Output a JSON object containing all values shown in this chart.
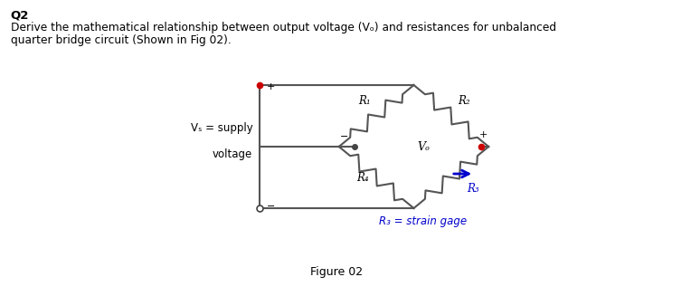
{
  "title_q": "Q2",
  "body_text_line1": "Derive the mathematical relationship between output voltage (Vₒ) and resistances for unbalanced",
  "body_text_line2": "quarter bridge circuit (Shown in Fig 02).",
  "figure_label": "Figure 02",
  "strain_gage_label": "R₃ = strain gage",
  "bg_color": "#ffffff",
  "text_color": "#000000",
  "circuit_color": "#555555",
  "r1_label": "R₁",
  "r2_label": "R₂",
  "r3_label": "R₃",
  "r4_label": "R₄",
  "vs_label_line1": "Vₛ = supply",
  "vs_label_line2": "voltage",
  "vo_label": "Vₒ",
  "r3_color": "#0000cc",
  "arrow_color": "#0000cc",
  "vo_dot_color": "#cc0000",
  "vs_dot_color": "#cc0000",
  "strain_gage_color": "#0000cc"
}
